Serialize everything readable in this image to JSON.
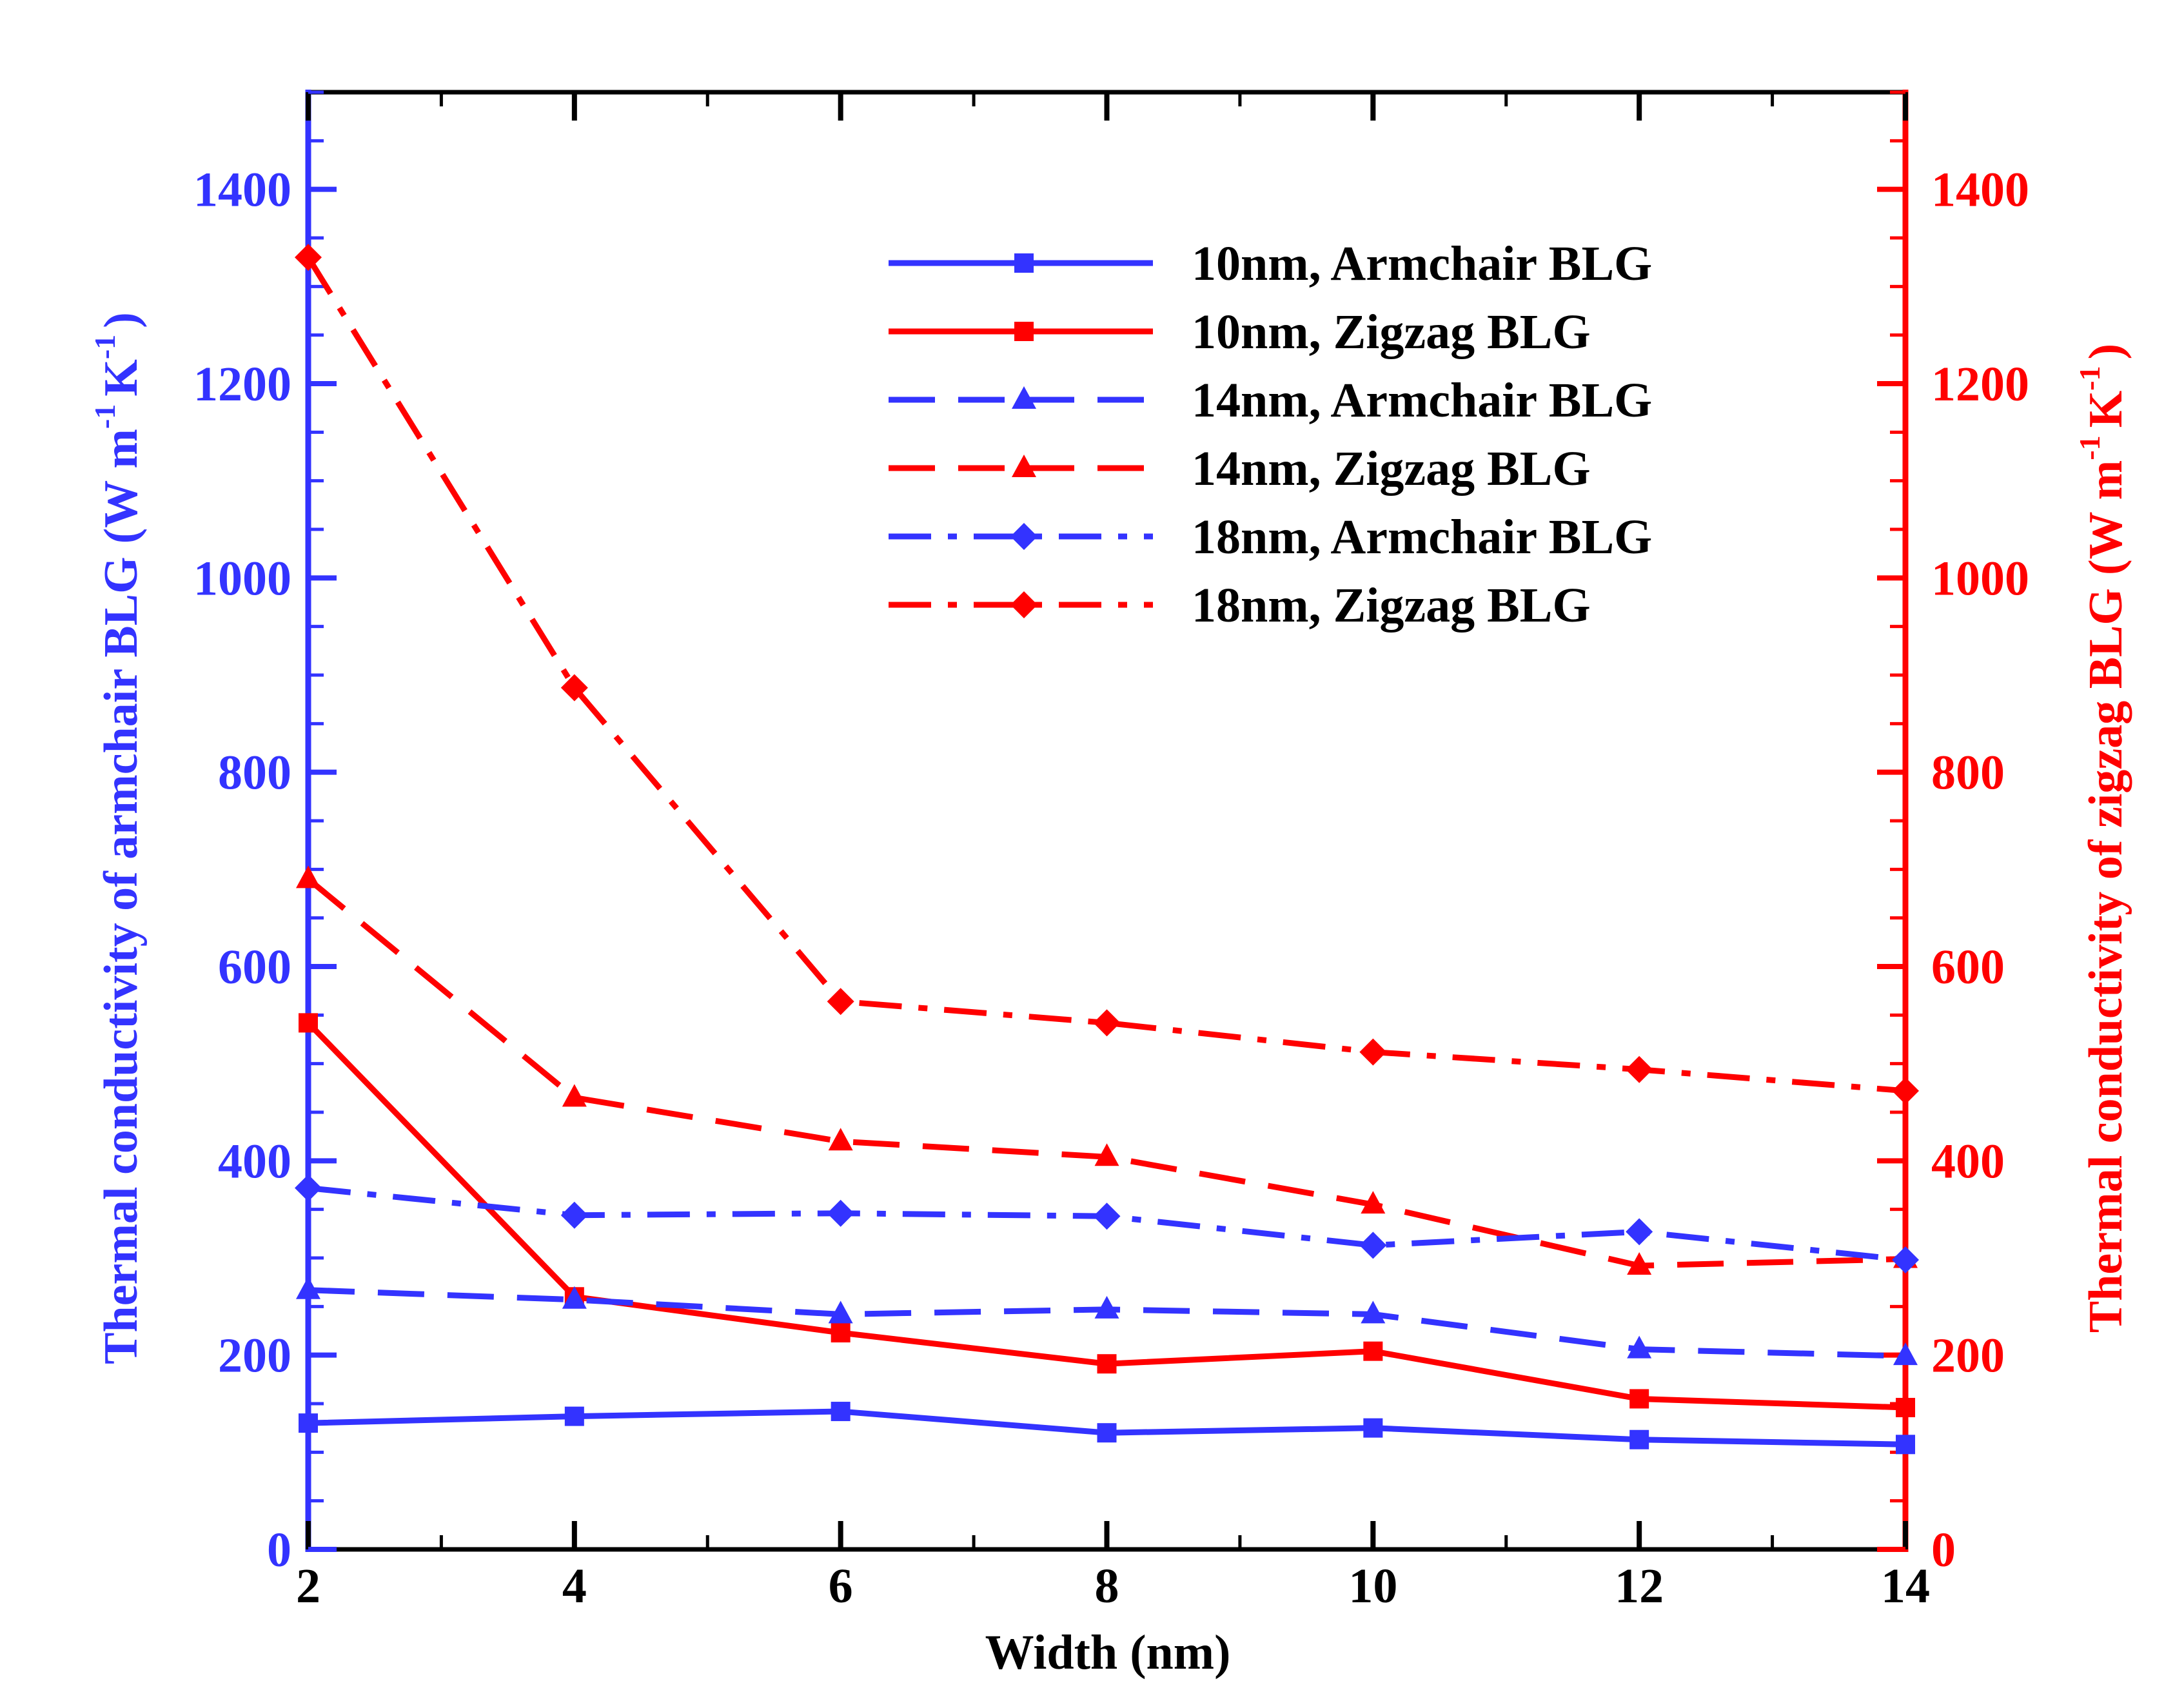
{
  "chart_data": {
    "type": "line",
    "xlabel": "Width (nm)",
    "ylabel_left": "Thermal conductivity of armchair BLG",
    "ylabel_left_unit": "(W m-1 K-1)",
    "ylabel_right": "Thermal conductivity of zigzag BLG",
    "ylabel_right_unit": "(W m-1 K-1)",
    "unit_parts": {
      "w": "W",
      "m": "m",
      "sup_m": "-1",
      "k": "K",
      "sup_k": "-1"
    },
    "xlim": [
      2,
      14
    ],
    "ylim_left": [
      0,
      1500
    ],
    "ylim_right": [
      0,
      1500
    ],
    "x_ticks": [
      2,
      4,
      6,
      8,
      10,
      12,
      14
    ],
    "y_ticks": [
      0,
      200,
      400,
      600,
      800,
      1000,
      1200,
      1400
    ],
    "x": [
      2,
      4,
      6,
      8,
      10,
      12,
      14
    ],
    "series": [
      {
        "name": "10nm, Armchair BLG",
        "axis": "left",
        "color": "#3333ff",
        "dash": "solid",
        "marker": "square",
        "values": [
          130,
          137,
          142,
          120,
          125,
          113,
          108
        ]
      },
      {
        "name": "10nm, Zigzag BLG",
        "axis": "right",
        "color": "#ff0000",
        "dash": "solid",
        "marker": "square",
        "values": [
          542,
          260,
          223,
          191,
          204,
          155,
          146
        ]
      },
      {
        "name": "14nm, Armchair BLG",
        "axis": "left",
        "color": "#3333ff",
        "dash": "dashed",
        "marker": "triangle",
        "values": [
          267,
          257,
          242,
          247,
          242,
          206,
          199
        ]
      },
      {
        "name": "14nm, Zigzag BLG",
        "axis": "right",
        "color": "#ff0000",
        "dash": "dashed",
        "marker": "triangle",
        "values": [
          690,
          465,
          420,
          404,
          355,
          292,
          299
        ]
      },
      {
        "name": "18nm, Armchair BLG",
        "axis": "left",
        "color": "#3333ff",
        "dash": "dashdot",
        "marker": "diamond",
        "values": [
          372,
          344,
          346,
          343,
          313,
          327,
          298
        ]
      },
      {
        "name": "18nm, Zigzag BLG",
        "axis": "right",
        "color": "#ff0000",
        "dash": "dashdot",
        "marker": "diamond",
        "values": [
          1330,
          887,
          564,
          542,
          512,
          494,
          472
        ]
      }
    ],
    "legend_position": "top-right",
    "colors": {
      "left_axis": "#3333ff",
      "right_axis": "#ff0000",
      "frame": "#000000"
    }
  }
}
